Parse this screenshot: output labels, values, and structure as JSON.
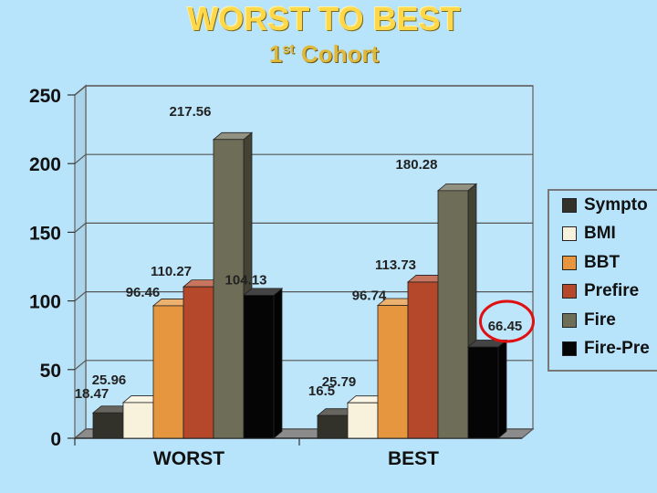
{
  "title": "WORST TO BEST",
  "subtitle": {
    "ordinal": "1",
    "suffix": "st",
    "text": "Cohort"
  },
  "chart_data": {
    "type": "bar",
    "categories": [
      "WORST",
      "BEST"
    ],
    "series": [
      {
        "name": "Sympto",
        "values": [
          18.47,
          16.5
        ],
        "color": "#33322a"
      },
      {
        "name": "BMI",
        "values": [
          25.96,
          25.79
        ],
        "color": "#f8f2dc"
      },
      {
        "name": "BBT",
        "values": [
          96.46,
          96.74
        ],
        "color": "#e6963f"
      },
      {
        "name": "Prefire",
        "values": [
          110.27,
          113.73
        ],
        "color": "#b5472a"
      },
      {
        "name": "Fire",
        "values": [
          217.56,
          180.28
        ],
        "color": "#6e6e58"
      },
      {
        "name": "Fire-Pre",
        "values": [
          104.13,
          66.45
        ],
        "color": "#050505"
      }
    ],
    "data_labels": [
      [
        "18.47",
        "25.96",
        "96.46",
        "110.27",
        "217.56",
        "104.13"
      ],
      [
        "16.5",
        "25.79",
        "96.74",
        "113.73",
        "180.28",
        "66.45"
      ]
    ],
    "ylim": [
      0,
      250
    ],
    "yticks": [
      "0",
      "50",
      "100",
      "150",
      "200",
      "250"
    ],
    "grid": true,
    "legend_position": "right",
    "highlight": {
      "category": "BEST",
      "series": "Fire-Pre",
      "color": "#e01010"
    }
  }
}
